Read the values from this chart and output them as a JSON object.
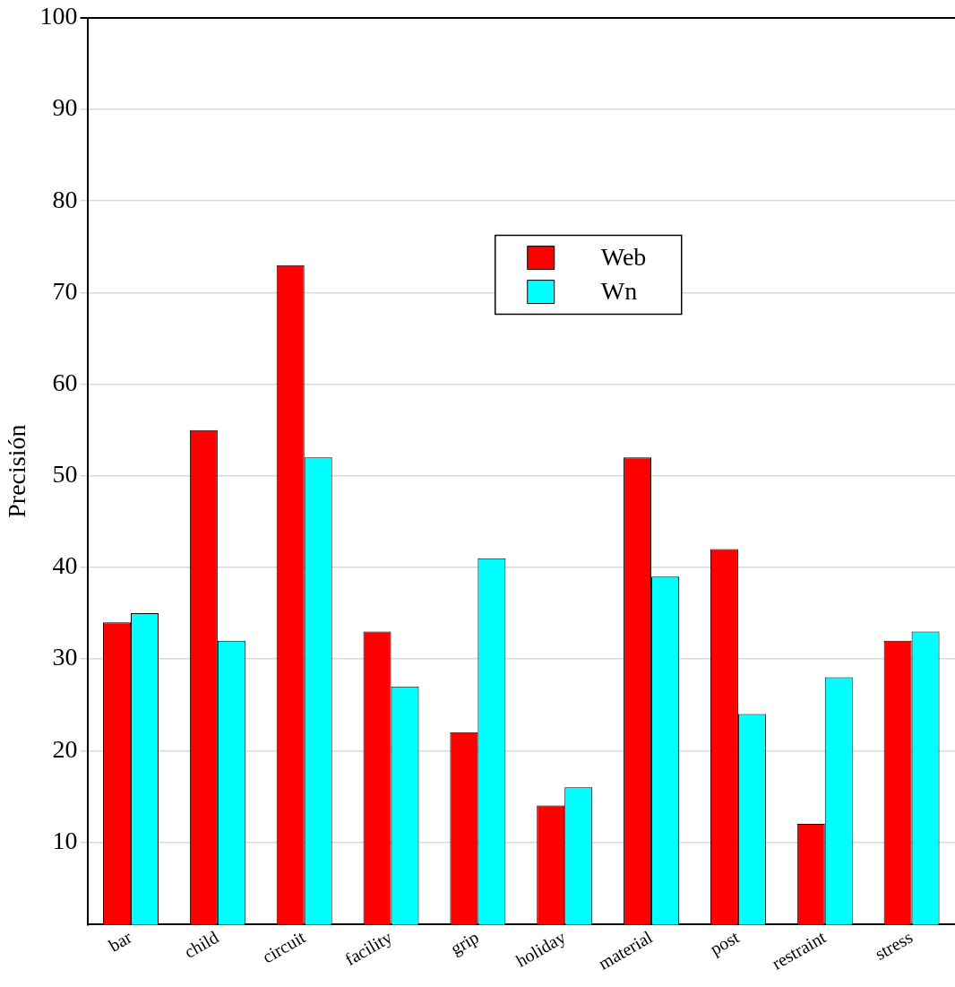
{
  "chart_data": {
    "type": "bar",
    "ylabel": "Precisión",
    "categories": [
      "bar",
      "child",
      "circuit",
      "facility",
      "grip",
      "holiday",
      "material",
      "post",
      "restraint",
      "stress"
    ],
    "series": [
      {
        "name": "Web",
        "color": "#ff0000",
        "values": [
          34,
          55,
          73,
          33,
          22,
          14,
          52,
          42,
          12,
          32
        ]
      },
      {
        "name": "Wn",
        "color": "#00ffff",
        "values": [
          35,
          32,
          52,
          27,
          41,
          16,
          39,
          24,
          28,
          33
        ]
      }
    ],
    "ylim": [
      1,
      100
    ],
    "yticks": [
      10,
      20,
      30,
      40,
      50,
      60,
      70,
      80,
      90,
      100
    ],
    "grid": "y",
    "legend": "top"
  }
}
